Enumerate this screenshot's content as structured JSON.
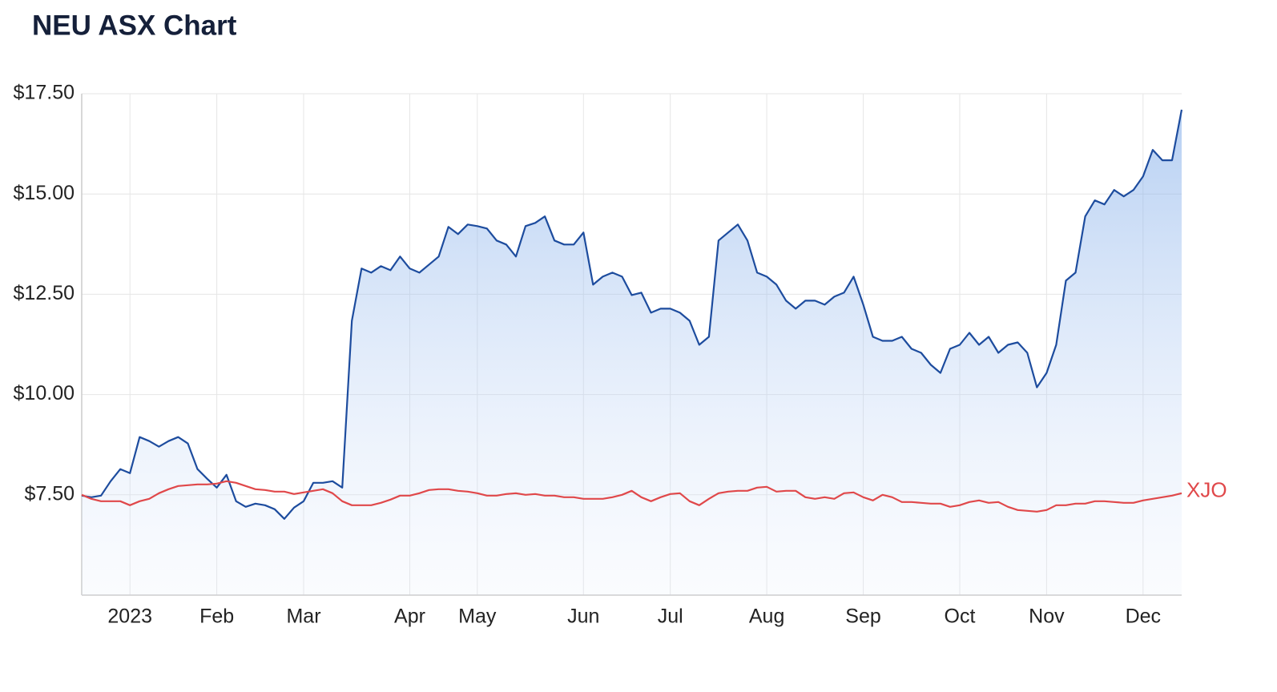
{
  "chart_data": {
    "type": "line",
    "title": "NEU ASX Chart",
    "categories": [
      null,
      null,
      null,
      null,
      null,
      "2023",
      null,
      null,
      null,
      null,
      null,
      null,
      null,
      null,
      "Feb",
      null,
      null,
      null,
      null,
      null,
      null,
      null,
      null,
      "Mar",
      null,
      null,
      null,
      null,
      null,
      null,
      null,
      null,
      null,
      null,
      "Apr",
      null,
      null,
      null,
      null,
      null,
      null,
      "May",
      null,
      null,
      null,
      null,
      null,
      null,
      null,
      null,
      null,
      null,
      "Jun",
      null,
      null,
      null,
      null,
      null,
      null,
      null,
      null,
      "Jul",
      null,
      null,
      null,
      null,
      null,
      null,
      null,
      null,
      null,
      "Aug",
      null,
      null,
      null,
      null,
      null,
      null,
      null,
      null,
      null,
      "Sep",
      null,
      null,
      null,
      null,
      null,
      null,
      null,
      null,
      null,
      "Oct",
      null,
      null,
      null,
      null,
      null,
      null,
      null,
      null,
      "Nov",
      null,
      null,
      null,
      null,
      null,
      null,
      null,
      null,
      null,
      "Dec",
      null,
      null,
      null,
      null
    ],
    "series": [
      {
        "color": "#1d4c9e",
        "fill": true,
        "values": [
          7.48,
          7.44,
          7.48,
          7.84,
          8.14,
          8.04,
          8.94,
          8.84,
          8.7,
          8.84,
          8.94,
          8.78,
          8.14,
          7.9,
          7.68,
          8.0,
          7.34,
          7.2,
          7.28,
          7.24,
          7.14,
          6.9,
          7.18,
          7.34,
          7.8,
          7.8,
          7.84,
          7.68,
          11.84,
          13.14,
          13.04,
          13.2,
          13.1,
          13.44,
          13.14,
          13.04,
          13.24,
          13.44,
          14.18,
          14.0,
          14.24,
          14.2,
          14.14,
          13.84,
          13.74,
          13.44,
          14.2,
          14.28,
          14.44,
          13.84,
          13.74,
          13.74,
          14.04,
          12.74,
          12.94,
          13.04,
          12.94,
          12.48,
          12.54,
          12.04,
          12.14,
          12.14,
          12.04,
          11.84,
          11.24,
          11.44,
          13.84,
          14.04,
          14.24,
          13.84,
          13.04,
          12.94,
          12.74,
          12.34,
          12.14,
          12.34,
          12.34,
          12.24,
          12.44,
          12.54,
          12.94,
          12.24,
          11.44,
          11.34,
          11.34,
          11.44,
          11.14,
          11.04,
          10.74,
          10.54,
          11.14,
          11.24,
          11.54,
          11.24,
          11.44,
          11.04,
          11.24,
          11.3,
          11.04,
          10.18,
          10.54,
          11.24,
          12.84,
          13.04,
          14.44,
          14.84,
          14.74,
          15.1,
          14.94,
          15.1,
          15.44,
          16.1,
          15.84,
          15.84,
          17.1
        ]
      },
      {
        "name": "XJO",
        "color": "#e0484a",
        "fill": false,
        "values": [
          7.5,
          7.4,
          7.34,
          7.34,
          7.34,
          7.24,
          7.34,
          7.4,
          7.54,
          7.64,
          7.72,
          7.74,
          7.76,
          7.76,
          7.78,
          7.84,
          7.8,
          7.72,
          7.64,
          7.62,
          7.58,
          7.58,
          7.52,
          7.56,
          7.6,
          7.64,
          7.54,
          7.34,
          7.24,
          7.24,
          7.24,
          7.3,
          7.38,
          7.48,
          7.48,
          7.54,
          7.62,
          7.64,
          7.64,
          7.6,
          7.58,
          7.54,
          7.48,
          7.48,
          7.52,
          7.54,
          7.5,
          7.52,
          7.48,
          7.48,
          7.44,
          7.44,
          7.4,
          7.4,
          7.4,
          7.44,
          7.5,
          7.6,
          7.44,
          7.34,
          7.44,
          7.52,
          7.54,
          7.34,
          7.24,
          7.4,
          7.54,
          7.58,
          7.6,
          7.6,
          7.68,
          7.7,
          7.58,
          7.6,
          7.6,
          7.44,
          7.4,
          7.44,
          7.4,
          7.54,
          7.56,
          7.44,
          7.36,
          7.5,
          7.44,
          7.32,
          7.32,
          7.3,
          7.28,
          7.28,
          7.2,
          7.24,
          7.32,
          7.36,
          7.3,
          7.32,
          7.2,
          7.12,
          7.1,
          7.08,
          7.12,
          7.24,
          7.24,
          7.28,
          7.28,
          7.34,
          7.34,
          7.32,
          7.3,
          7.3,
          7.36,
          7.4,
          7.44,
          7.48,
          7.54
        ]
      }
    ],
    "ylim": [
      5,
      17.5
    ],
    "yticks": [
      {
        "value": 7.5,
        "label": "$7.50"
      },
      {
        "value": 10,
        "label": "$10.00"
      },
      {
        "value": 12.5,
        "label": "$12.50"
      },
      {
        "value": 15,
        "label": "$15.00"
      },
      {
        "value": 17.5,
        "label": "$17.50"
      }
    ],
    "grid": true
  }
}
